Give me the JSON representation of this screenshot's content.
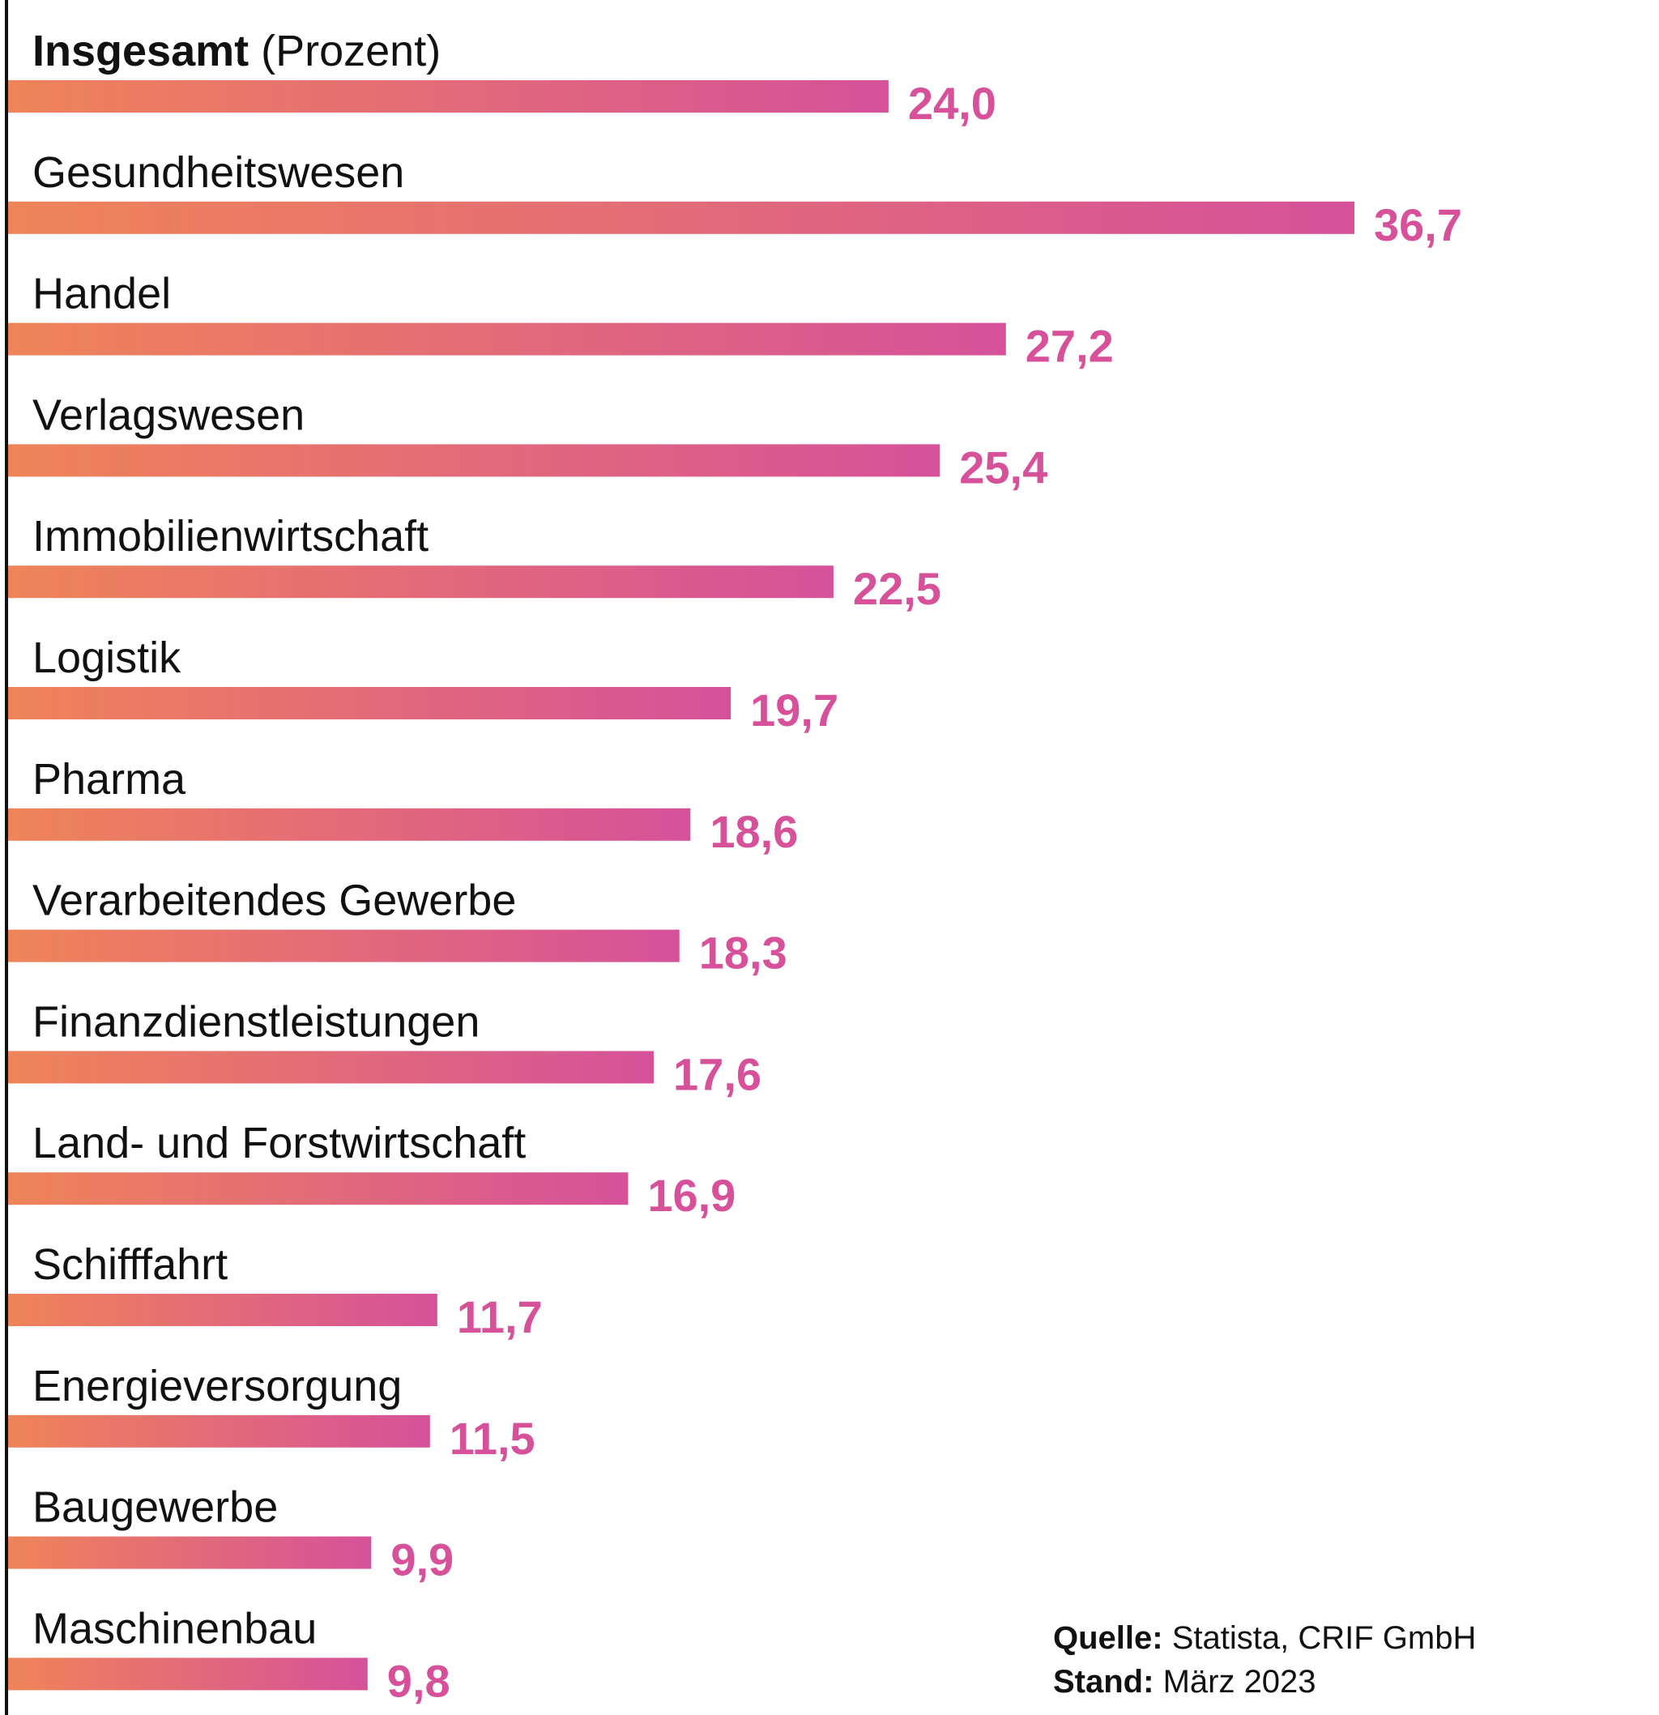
{
  "chart_data": {
    "type": "bar",
    "orientation": "horizontal",
    "header_bold": "Insgesamt",
    "header_unit": "(Prozent)",
    "categories": [
      "Insgesamt",
      "Gesundheitswesen",
      "Handel",
      "Verlagswesen",
      "Immobilienwirtschaft",
      "Logistik",
      "Pharma",
      "Verarbeitendes Gewerbe",
      "Finanzdienstleistungen",
      "Land- und Forstwirtschaft",
      "Schifffahrt",
      "Energieversorgung",
      "Baugewerbe",
      "Maschinenbau"
    ],
    "values": [
      24.0,
      36.7,
      27.2,
      25.4,
      22.5,
      19.7,
      18.6,
      18.3,
      17.6,
      16.9,
      11.7,
      11.5,
      9.9,
      9.8
    ],
    "value_labels": [
      "24,0",
      "36,7",
      "27,2",
      "25,4",
      "22,5",
      "19,7",
      "18,6",
      "18,3",
      "17,6",
      "16,9",
      "11,7",
      "11,5",
      "9,9",
      "9,8"
    ],
    "xlim": [
      0,
      36.7
    ],
    "grid": false,
    "legend": "none",
    "colors": {
      "gradient_start": "#EF8458",
      "gradient_end": "#D6519A",
      "value_text": "#D6519A",
      "axis": "#111111"
    }
  },
  "source": {
    "quelle_label": "Quelle:",
    "quelle_text": "Statista, CRIF GmbH",
    "stand_label": "Stand:",
    "stand_text": "März 2023"
  }
}
